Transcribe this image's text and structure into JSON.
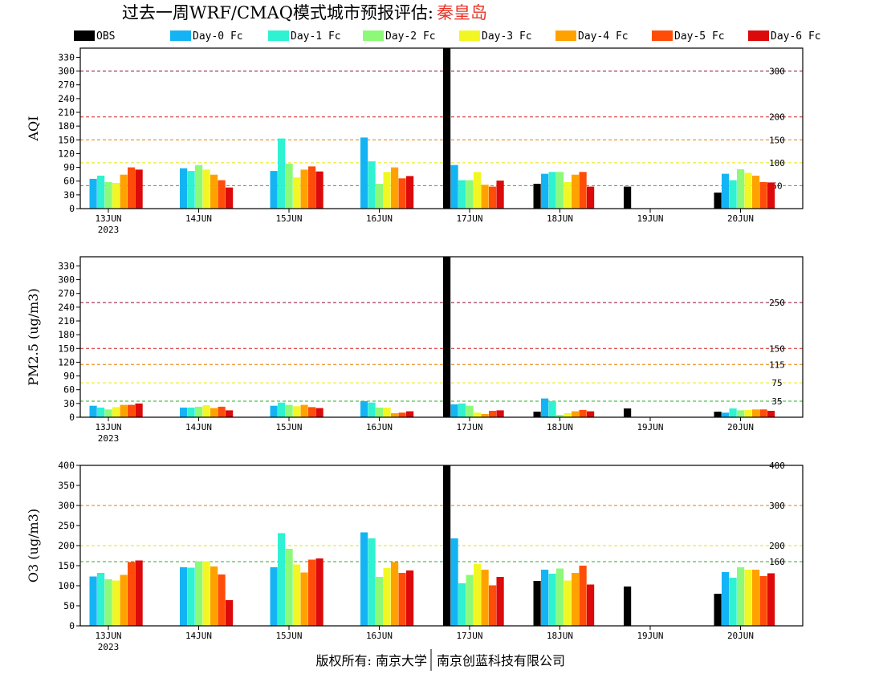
{
  "title": {
    "main": "过去一周WRF/CMAQ模式城市预报评估:",
    "city": "秦皇岛",
    "city_color": "#e8352a"
  },
  "legend": [
    {
      "name": "OBS",
      "color": "#000000"
    },
    {
      "name": "Day-0 Fc",
      "color": "#14b4f4"
    },
    {
      "name": "Day-1 Fc",
      "color": "#2ef2d2"
    },
    {
      "name": "Day-2 Fc",
      "color": "#8cfa78"
    },
    {
      "name": "Day-3 Fc",
      "color": "#f2f724"
    },
    {
      "name": "Day-4 Fc",
      "color": "#ffa200"
    },
    {
      "name": "Day-5 Fc",
      "color": "#ff4c08"
    },
    {
      "name": "Day-6 Fc",
      "color": "#dc0a0a"
    }
  ],
  "footer": {
    "left": "版权所有: 南京大学",
    "right": "南京创蓝科技有限公司"
  },
  "chart_data": [
    {
      "type": "bar",
      "ylabel": "AQI",
      "ylim": [
        0,
        350
      ],
      "yticks": [
        0,
        30,
        60,
        90,
        120,
        150,
        180,
        210,
        240,
        270,
        300,
        330
      ],
      "x_labels": [
        "13JUN",
        "14JUN",
        "15JUN",
        "16JUN",
        "17JUN",
        "18JUN",
        "19JUN",
        "20JUN"
      ],
      "year_label": "2023",
      "thresholds": [
        {
          "value": 50,
          "label": "50",
          "color": "#22b422"
        },
        {
          "value": 100,
          "label": "100",
          "color": "#e6e600"
        },
        {
          "value": 150,
          "label": "150",
          "color": "#e67e00"
        },
        {
          "value": 200,
          "label": "200",
          "color": "#d42020"
        },
        {
          "value": 300,
          "label": "300",
          "color": "#8a0a3a"
        }
      ],
      "series": [
        {
          "name": "OBS",
          "values": [
            null,
            null,
            null,
            null,
            350,
            54,
            48,
            35
          ]
        },
        {
          "name": "Day-0 Fc",
          "values": [
            65,
            88,
            82,
            155,
            95,
            76,
            null,
            76
          ]
        },
        {
          "name": "Day-1 Fc",
          "values": [
            72,
            82,
            153,
            103,
            62,
            80,
            null,
            62
          ]
        },
        {
          "name": "Day-2 Fc",
          "values": [
            58,
            95,
            98,
            54,
            62,
            80,
            null,
            86
          ]
        },
        {
          "name": "Day-3 Fc",
          "values": [
            56,
            85,
            68,
            80,
            80,
            58,
            null,
            78
          ]
        },
        {
          "name": "Day-4 Fc",
          "values": [
            74,
            74,
            85,
            90,
            52,
            74,
            null,
            72
          ]
        },
        {
          "name": "Day-5 Fc",
          "values": [
            90,
            62,
            92,
            66,
            48,
            80,
            null,
            58
          ]
        },
        {
          "name": "Day-6 Fc",
          "values": [
            85,
            46,
            81,
            71,
            61,
            48,
            null,
            57
          ]
        }
      ]
    },
    {
      "type": "bar",
      "ylabel": "PM2.5 (ug/m3)",
      "ylim": [
        0,
        350
      ],
      "yticks": [
        0,
        30,
        60,
        90,
        120,
        150,
        180,
        210,
        240,
        270,
        300,
        330
      ],
      "x_labels": [
        "13JUN",
        "14JUN",
        "15JUN",
        "16JUN",
        "17JUN",
        "18JUN",
        "19JUN",
        "20JUN"
      ],
      "year_label": "2023",
      "thresholds": [
        {
          "value": 35,
          "label": "35",
          "color": "#22b422"
        },
        {
          "value": 75,
          "label": "75",
          "color": "#e6e600"
        },
        {
          "value": 115,
          "label": "115",
          "color": "#e67e00"
        },
        {
          "value": 150,
          "label": "150",
          "color": "#d42020"
        },
        {
          "value": 250,
          "label": "250",
          "color": "#8a0a3a"
        }
      ],
      "series": [
        {
          "name": "OBS",
          "values": [
            null,
            null,
            null,
            null,
            350,
            12,
            19,
            12
          ]
        },
        {
          "name": "Day-0 Fc",
          "values": [
            25,
            21,
            25,
            35,
            28,
            41,
            null,
            10
          ]
        },
        {
          "name": "Day-1 Fc",
          "values": [
            21,
            21,
            32,
            32,
            30,
            35,
            null,
            19
          ]
        },
        {
          "name": "Day-2 Fc",
          "values": [
            17,
            23,
            27,
            21,
            25,
            5,
            null,
            15
          ]
        },
        {
          "name": "Day-3 Fc",
          "values": [
            22,
            26,
            24,
            21,
            10,
            9,
            null,
            16
          ]
        },
        {
          "name": "Day-4 Fc",
          "values": [
            27,
            20,
            27,
            9,
            7,
            13,
            null,
            17
          ]
        },
        {
          "name": "Day-5 Fc",
          "values": [
            27,
            23,
            22,
            10,
            14,
            16,
            null,
            17
          ]
        },
        {
          "name": "Day-6 Fc",
          "values": [
            30,
            15,
            20,
            13,
            15,
            13,
            null,
            14
          ]
        }
      ]
    },
    {
      "type": "bar",
      "ylabel": "O3 (ug/m3)",
      "ylim": [
        0,
        400
      ],
      "yticks": [
        0,
        50,
        100,
        150,
        200,
        250,
        300,
        350,
        400
      ],
      "x_labels": [
        "13JUN",
        "14JUN",
        "15JUN",
        "16JUN",
        "17JUN",
        "18JUN",
        "19JUN",
        "20JUN"
      ],
      "year_label": "2023",
      "thresholds": [
        {
          "value": 160,
          "label": "160",
          "color": "#22b422"
        },
        {
          "value": 200,
          "label": "200",
          "color": "#e6e600"
        },
        {
          "value": 300,
          "label": "300",
          "color": "#e67e00"
        },
        {
          "value": 400,
          "label": "400",
          "color": "#d42020"
        }
      ],
      "series": [
        {
          "name": "OBS",
          "values": [
            null,
            null,
            null,
            null,
            400,
            112,
            98,
            80
          ]
        },
        {
          "name": "Day-0 Fc",
          "values": [
            123,
            146,
            146,
            233,
            218,
            140,
            null,
            134
          ]
        },
        {
          "name": "Day-1 Fc",
          "values": [
            132,
            145,
            231,
            218,
            106,
            130,
            null,
            120
          ]
        },
        {
          "name": "Day-2 Fc",
          "values": [
            116,
            161,
            192,
            122,
            127,
            143,
            null,
            146
          ]
        },
        {
          "name": "Day-3 Fc",
          "values": [
            113,
            161,
            153,
            144,
            154,
            113,
            null,
            140
          ]
        },
        {
          "name": "Day-4 Fc",
          "values": [
            127,
            148,
            133,
            159,
            140,
            132,
            null,
            140
          ]
        },
        {
          "name": "Day-5 Fc",
          "values": [
            159,
            128,
            165,
            132,
            101,
            150,
            null,
            124
          ]
        },
        {
          "name": "Day-6 Fc",
          "values": [
            163,
            64,
            168,
            138,
            122,
            103,
            null,
            131
          ]
        }
      ]
    }
  ]
}
